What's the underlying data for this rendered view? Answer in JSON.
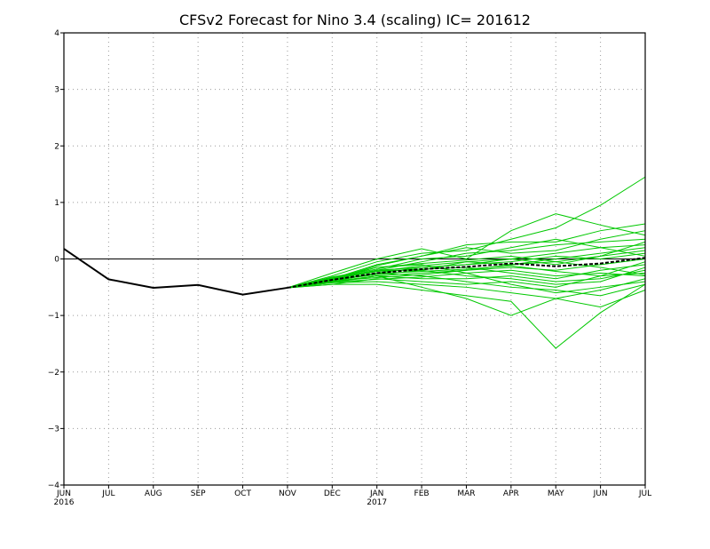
{
  "chart_data": {
    "type": "line",
    "title": "CFSv2 Forecast for Nino 3.4 (scaling)  IC= 201612",
    "xlabel": "",
    "ylabel": "",
    "x_ticks": [
      "JUN",
      "JUL",
      "AUG",
      "SEP",
      "OCT",
      "NOV",
      "DEC",
      "JAN",
      "FEB",
      "MAR",
      "APR",
      "MAY",
      "JUN",
      "JUL"
    ],
    "x_year_labels": [
      {
        "index": 0,
        "label": "2016"
      },
      {
        "index": 7,
        "label": "2017"
      }
    ],
    "y_ticks": [
      "4",
      "3",
      "2",
      "1",
      "0",
      "−1",
      "−2",
      "−3",
      "−4"
    ],
    "y_tick_values": [
      4,
      3,
      2,
      1,
      0,
      -1,
      -2,
      -3,
      -4
    ],
    "ylim": [
      -4,
      4
    ],
    "grid": true,
    "colors": {
      "observed": "#000000",
      "members": "#00c800",
      "mean": "#000000",
      "zero_line": "#000000"
    },
    "observed": {
      "x": [
        "JUN 2016",
        "JUL 2016",
        "AUG 2016",
        "SEP 2016",
        "OCT 2016",
        "NOV 2016"
      ],
      "values": [
        0.18,
        -0.36,
        -0.51,
        -0.46,
        -0.63,
        -0.51
      ]
    },
    "ensemble_mean": {
      "x": [
        "NOV 2016",
        "DEC 2016",
        "JAN 2017",
        "FEB 2017",
        "MAR 2017",
        "APR 2017",
        "MAY 2017",
        "JUN 2017",
        "JUL 2017"
      ],
      "values": [
        -0.51,
        -0.37,
        -0.25,
        -0.18,
        -0.14,
        -0.08,
        -0.13,
        -0.08,
        0.02
      ]
    },
    "members": [
      {
        "values": [
          -0.51,
          -0.25,
          0.0,
          0.18,
          0.0,
          0.5,
          0.8,
          0.6,
          0.42
        ]
      },
      {
        "values": [
          -0.51,
          -0.3,
          -0.05,
          0.1,
          0.15,
          0.35,
          0.55,
          0.95,
          1.45
        ]
      },
      {
        "values": [
          -0.51,
          -0.35,
          -0.1,
          0.05,
          0.25,
          0.3,
          0.3,
          0.5,
          0.62
        ]
      },
      {
        "values": [
          -0.51,
          -0.38,
          -0.2,
          -0.05,
          0.1,
          0.15,
          0.25,
          0.3,
          0.35
        ]
      },
      {
        "values": [
          -0.51,
          -0.4,
          -0.25,
          -0.15,
          -0.1,
          0.0,
          0.1,
          0.2,
          0.25
        ]
      },
      {
        "values": [
          -0.51,
          -0.35,
          -0.2,
          -0.2,
          -0.05,
          -0.1,
          -0.05,
          0.05,
          0.15
        ]
      },
      {
        "values": [
          -0.51,
          -0.42,
          -0.3,
          -0.25,
          -0.2,
          -0.15,
          -0.2,
          -0.1,
          0.0
        ]
      },
      {
        "values": [
          -0.51,
          -0.4,
          -0.3,
          -0.35,
          -0.35,
          -0.3,
          -0.4,
          -0.35,
          -0.2
        ]
      },
      {
        "values": [
          -0.51,
          -0.45,
          -0.35,
          -0.4,
          -0.45,
          -0.4,
          -0.5,
          -0.3,
          -0.25
        ]
      },
      {
        "values": [
          -0.51,
          -0.42,
          -0.4,
          -0.45,
          -0.5,
          -0.6,
          -0.7,
          -0.55,
          -0.35
        ]
      },
      {
        "values": [
          -0.51,
          -0.45,
          -0.45,
          -0.55,
          -0.65,
          -0.75,
          -1.58,
          -0.95,
          -0.45
        ]
      },
      {
        "values": [
          -0.51,
          -0.4,
          -0.3,
          -0.5,
          -0.7,
          -1.0,
          -0.7,
          -0.85,
          -0.55
        ]
      },
      {
        "values": [
          -0.51,
          -0.38,
          -0.25,
          -0.3,
          -0.4,
          -0.5,
          -0.55,
          -0.65,
          -0.45
        ]
      },
      {
        "values": [
          -0.51,
          -0.35,
          -0.15,
          -0.1,
          -0.25,
          -0.2,
          -0.3,
          -0.25,
          -0.3
        ]
      },
      {
        "values": [
          -0.51,
          -0.33,
          -0.2,
          -0.15,
          -0.1,
          -0.05,
          0.05,
          0.0,
          0.1
        ]
      },
      {
        "values": [
          -0.51,
          -0.36,
          -0.22,
          -0.18,
          -0.15,
          -0.25,
          -0.35,
          -0.2,
          -0.1
        ]
      },
      {
        "values": [
          -0.51,
          -0.32,
          -0.18,
          0.0,
          0.05,
          0.2,
          0.35,
          0.2,
          0.05
        ]
      },
      {
        "values": [
          -0.51,
          -0.37,
          -0.28,
          -0.2,
          -0.3,
          -0.35,
          -0.45,
          -0.4,
          -0.15
        ]
      },
      {
        "values": [
          -0.51,
          -0.34,
          -0.15,
          -0.08,
          -0.02,
          0.05,
          -0.05,
          -0.15,
          -0.28
        ]
      },
      {
        "values": [
          -0.51,
          -0.39,
          -0.33,
          -0.28,
          -0.2,
          -0.1,
          0.0,
          0.1,
          0.2
        ]
      },
      {
        "values": [
          -0.51,
          -0.36,
          -0.12,
          0.05,
          0.2,
          0.1,
          0.15,
          0.35,
          0.5
        ]
      },
      {
        "values": [
          -0.51,
          -0.41,
          -0.36,
          -0.32,
          -0.25,
          -0.45,
          -0.6,
          -0.5,
          -0.4
        ]
      },
      {
        "values": [
          -0.51,
          -0.33,
          -0.22,
          -0.12,
          -0.05,
          0.0,
          -0.1,
          0.05,
          0.3
        ]
      },
      {
        "values": [
          -0.51,
          -0.38,
          -0.26,
          -0.22,
          -0.18,
          -0.12,
          -0.22,
          -0.3,
          -0.05
        ]
      }
    ]
  }
}
